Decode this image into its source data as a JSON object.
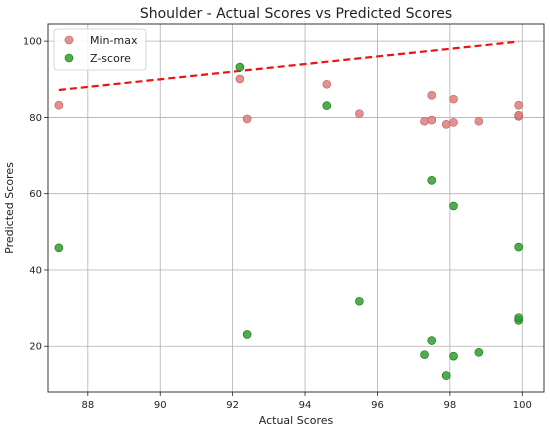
{
  "chart_data": {
    "type": "scatter",
    "title": "Shoulder - Actual Scores vs Predicted Scores",
    "xlabel": "Actual Scores",
    "ylabel": "Predicted Scores",
    "xlim": [
      86.9,
      100.6
    ],
    "ylim": [
      8,
      104.5
    ],
    "xticks": [
      88,
      90,
      92,
      94,
      96,
      98,
      100
    ],
    "yticks": [
      20,
      40,
      60,
      80,
      100
    ],
    "grid": true,
    "legend_position": "top-left",
    "series": [
      {
        "name": "Min-max",
        "color": "#e07b7b",
        "edge_color": "#b85c5c",
        "points": [
          [
            87.2,
            83.2
          ],
          [
            92.2,
            90.1
          ],
          [
            92.4,
            79.6
          ],
          [
            94.6,
            88.7
          ],
          [
            95.5,
            81.0
          ],
          [
            97.3,
            79.0
          ],
          [
            97.5,
            79.3
          ],
          [
            97.5,
            85.8
          ],
          [
            97.9,
            78.2
          ],
          [
            98.1,
            78.7
          ],
          [
            98.1,
            84.8
          ],
          [
            98.8,
            79.0
          ],
          [
            99.9,
            80.3
          ],
          [
            99.9,
            80.6
          ],
          [
            99.9,
            83.2
          ]
        ]
      },
      {
        "name": "Z-score",
        "color": "#2ca02c",
        "edge_color": "#1b6b1b",
        "points": [
          [
            87.2,
            45.8
          ],
          [
            92.2,
            93.2
          ],
          [
            92.4,
            23.1
          ],
          [
            94.6,
            83.1
          ],
          [
            95.5,
            31.8
          ],
          [
            97.3,
            17.8
          ],
          [
            97.5,
            21.5
          ],
          [
            97.5,
            63.5
          ],
          [
            97.9,
            12.3
          ],
          [
            98.1,
            17.4
          ],
          [
            98.1,
            56.8
          ],
          [
            98.8,
            18.4
          ],
          [
            99.9,
            26.8
          ],
          [
            99.9,
            27.5
          ],
          [
            99.9,
            46.0
          ]
        ]
      }
    ],
    "reference_line": {
      "style": "dashed",
      "color": "#ee1111",
      "x": [
        87.2,
        99.9
      ],
      "y": [
        87.2,
        99.9
      ]
    }
  }
}
